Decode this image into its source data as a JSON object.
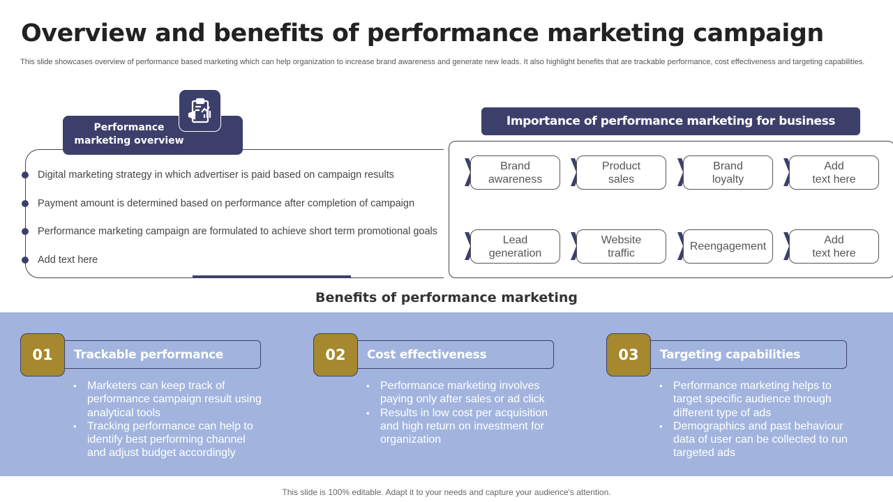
{
  "title": "Overview and benefits of performance marketing campaign",
  "description": "This slide showcases overview of performance based marketing which can help organization to increase brand awareness and generate new leads. It also highlight benefits that are trackable performance, cost effectiveness and targeting capabilities.",
  "overview": {
    "heading_line1": "Performance",
    "heading_line2": "marketing overview",
    "icon": "clipboard-chart-megaphone-icon",
    "items": [
      "Digital marketing strategy in which advertiser is paid based on campaign results",
      "Payment amount is determined based on performance after completion of campaign",
      "Performance marketing campaign are formulated to achieve short term promotional goals",
      "Add text here"
    ]
  },
  "importance": {
    "heading": "Importance of performance marketing for business",
    "items": [
      [
        "Brand",
        "awareness"
      ],
      [
        "Product",
        "sales"
      ],
      [
        "Brand",
        "loyalty"
      ],
      [
        "Add",
        "text here"
      ],
      [
        "Lead",
        "generation"
      ],
      [
        "Website",
        "traffic"
      ],
      [
        "Reengagement",
        ""
      ],
      [
        "Add",
        "text here"
      ]
    ]
  },
  "benefits": {
    "heading": "Benefits of performance  marketing",
    "cards": [
      {
        "number": "01",
        "title": "Trackable performance",
        "bullets": [
          "Marketers can keep track of performance campaign result using analytical tools",
          "Tracking performance can help to identify best performing channel and adjust budget accordingly"
        ]
      },
      {
        "number": "02",
        "title": "Cost effectiveness",
        "bullets": [
          "Performance marketing involves paying only after sales or ad click",
          "Results in low cost per acquisition and high return on investment for organization"
        ]
      },
      {
        "number": "03",
        "title": "Targeting capabilities",
        "bullets": [
          "Performance marketing helps to target specific audience through different type of ads",
          "Demographics and past behaviour data of user can be collected to run targeted ads"
        ]
      }
    ]
  },
  "footer": "This slide is 100% editable. Adapt it to your needs and capture your audience's attention.",
  "colors": {
    "navy": "#3D3F6B",
    "gold": "#A6882E",
    "band": "#A2B4DE"
  }
}
